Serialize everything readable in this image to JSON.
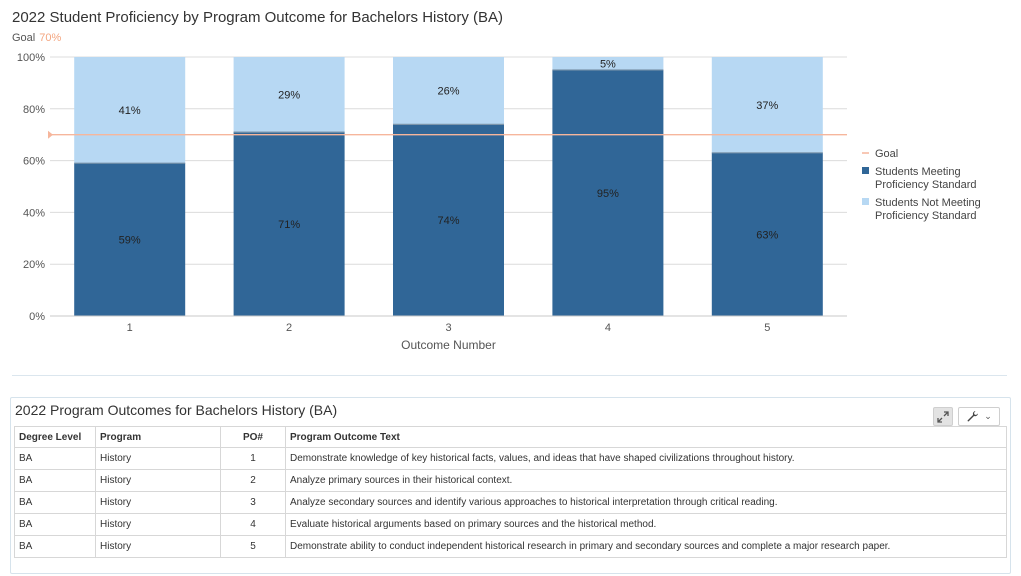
{
  "chart_data": {
    "type": "bar",
    "stacked": true,
    "title": "2022 Student Proficiency by Program Outcome for Bachelors History (BA)",
    "goal_label": "Goal",
    "goal_value_label": "70%",
    "goal": 70,
    "categories": [
      "1",
      "2",
      "3",
      "4",
      "5"
    ],
    "series": [
      {
        "name": "Students Meeting Proficiency Standard",
        "values": [
          59,
          71,
          74,
          95,
          63
        ],
        "labels": [
          "59%",
          "71%",
          "74%",
          "95%",
          "63%"
        ],
        "color": "#306697"
      },
      {
        "name": "Students Not Meeting Proficiency Standard",
        "values": [
          41,
          29,
          26,
          5,
          37
        ],
        "labels": [
          "41%",
          "29%",
          "26%",
          "5%",
          "37%"
        ],
        "color": "#b7d8f3"
      }
    ],
    "goal_color": "#f6b69c",
    "xlabel": "Outcome Number",
    "ylabel": "",
    "ylim": [
      0,
      100
    ],
    "yticks": [
      "0%",
      "20%",
      "40%",
      "60%",
      "80%",
      "100%"
    ],
    "grid": true,
    "legend": {
      "position": "right",
      "items": [
        {
          "lines": [
            "Goal"
          ],
          "kind": "line",
          "color": "#f6b69c"
        },
        {
          "lines": [
            "Students Meeting",
            "Proficiency Standard"
          ],
          "kind": "box",
          "color": "#306697"
        },
        {
          "lines": [
            "Students Not Meeting",
            "Proficiency Standard"
          ],
          "kind": "box",
          "color": "#b7d8f3"
        }
      ]
    }
  },
  "table": {
    "title": "2022 Program Outcomes for Bachelors History (BA)",
    "headers": [
      "Degree Level",
      "Program",
      "PO#",
      "Program Outcome Text"
    ],
    "rows": [
      [
        "BA",
        "History",
        "1",
        "Demonstrate knowledge of key historical facts, values, and ideas that have shaped civilizations throughout history."
      ],
      [
        "BA",
        "History",
        "2",
        "Analyze primary sources in their historical context."
      ],
      [
        "BA",
        "History",
        "3",
        "Analyze secondary sources and identify various approaches to historical interpretation through critical reading."
      ],
      [
        "BA",
        "History",
        "4",
        "Evaluate historical arguments based on primary sources and the historical method."
      ],
      [
        "BA",
        "History",
        "5",
        "Demonstrate ability to conduct independent historical research in primary and secondary sources and complete a major research paper."
      ]
    ],
    "expand_icon": "expand-icon",
    "tools_icon": "wrench-icon"
  }
}
